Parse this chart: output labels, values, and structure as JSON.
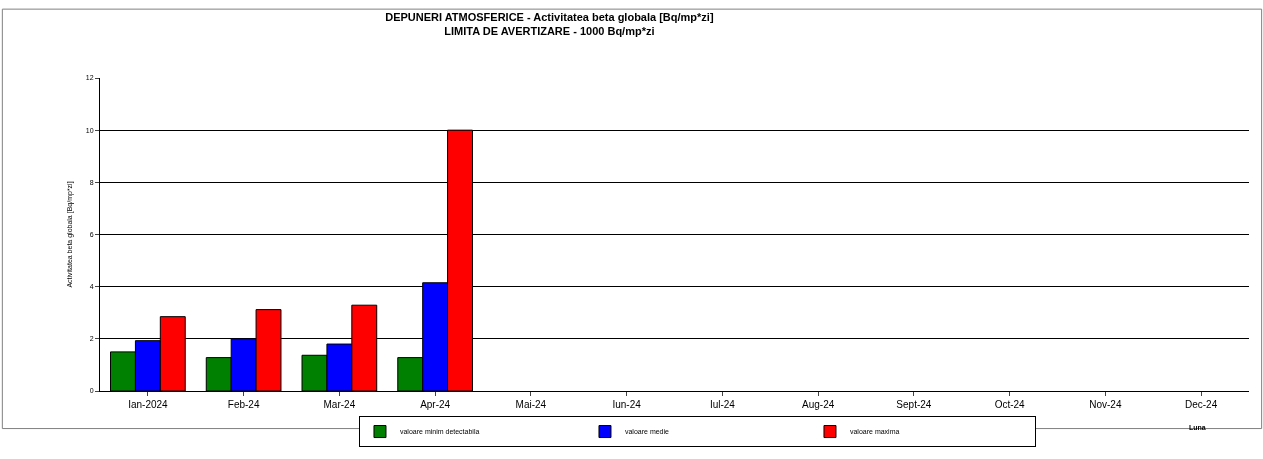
{
  "chart_data": {
    "type": "bar",
    "title": "DEPUNERI ATMOSFERICE - Activitatea beta globala [Bq/mp*zi]",
    "subtitle": "LIMITA DE AVERTIZARE - 1000 Bq/mp*zi",
    "xlabel": "Luna",
    "ylabel": "Activitatea beta globala [Bq/mp*zi]",
    "categories": [
      "Ian-2024",
      "Feb-24",
      "Mar-24",
      "Apr-24",
      "Mai-24",
      "Iun-24",
      "Iul-24",
      "Aug-24",
      "Sept-24",
      "Oct-24",
      "Nov-24",
      "Dec-24"
    ],
    "series": [
      {
        "name": "valoare minim detectabila",
        "color": "#008000",
        "values": [
          1.5,
          1.28,
          1.37,
          1.28,
          null,
          null,
          null,
          null,
          null,
          null,
          null,
          null
        ]
      },
      {
        "name": "valoare medie",
        "color": "#0000ff",
        "values": [
          1.93,
          2.0,
          1.8,
          4.15,
          null,
          null,
          null,
          null,
          null,
          null,
          null,
          null
        ]
      },
      {
        "name": "valoare maxima",
        "color": "#ff0000",
        "values": [
          2.85,
          3.12,
          3.29,
          10.0,
          null,
          null,
          null,
          null,
          null,
          null,
          null,
          null
        ]
      }
    ],
    "ylim": [
      0,
      12
    ],
    "yticks": [
      0,
      2,
      4,
      6,
      8,
      10,
      12
    ],
    "grid": "y",
    "legend": "bottom"
  }
}
